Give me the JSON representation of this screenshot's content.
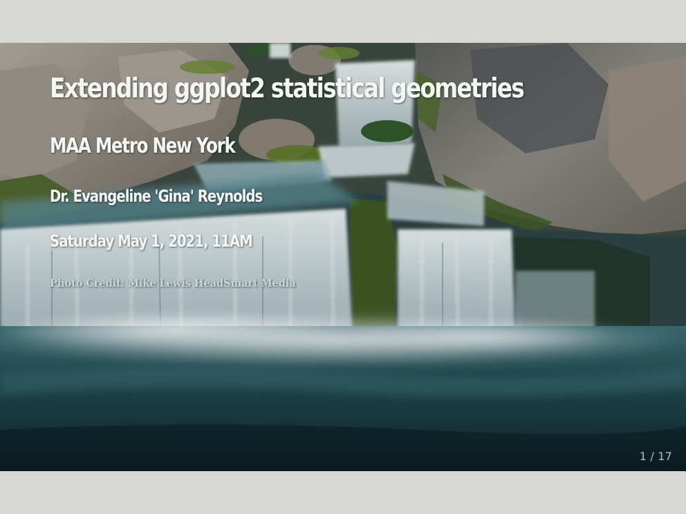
{
  "slide": {
    "title": "Extending ggplot2 statistical geometries",
    "subtitle": "MAA Metro New York",
    "author": "Dr. Evangeline 'Gina' Reynolds",
    "date": "Saturday May 1, 2021, 11AM",
    "photo_credit": "Photo Credit: Mike Lewis HeadSmart Media",
    "page_number": "1 / 17"
  },
  "background": {
    "description_icon": "waterfall-photo",
    "colors": {
      "rock_gray": "#8c8a80",
      "moss_green": "#4d6a2a",
      "water_white": "#e8f2f4",
      "pool_teal": "#1f4a52",
      "pool_dark": "#10262c"
    }
  }
}
